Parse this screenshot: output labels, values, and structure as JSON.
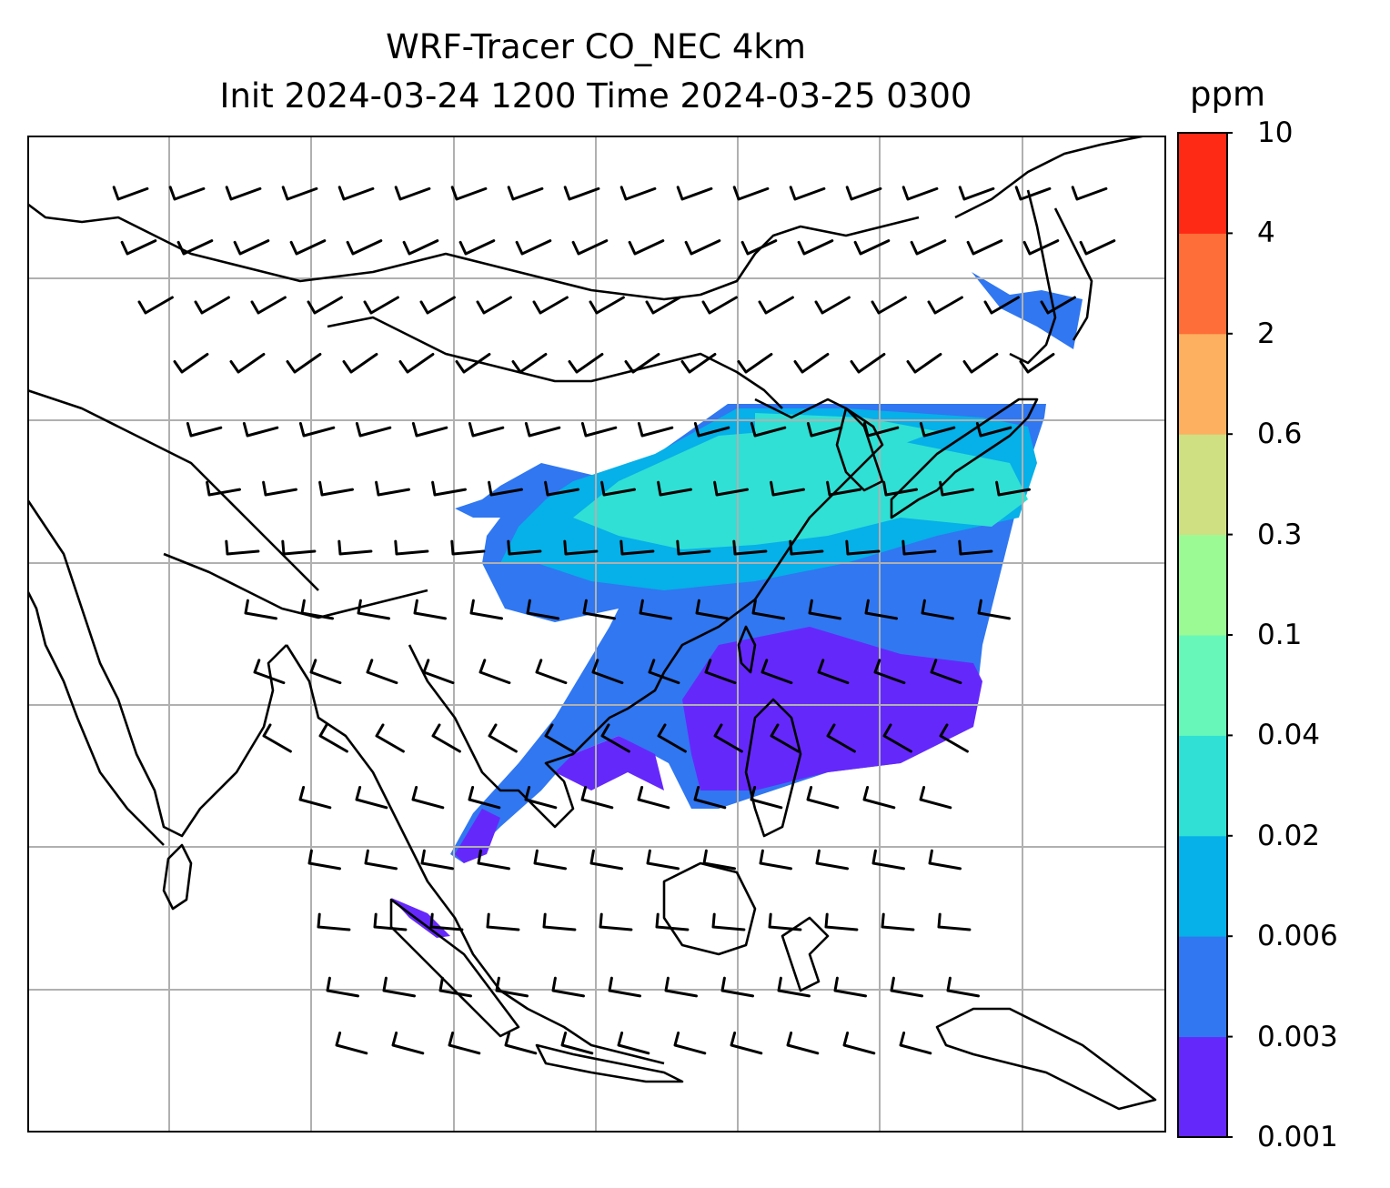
{
  "title": {
    "line1": "WRF-Tracer CO_NEC 4km",
    "line2": "Init 2024-03-24 1200 Time 2024-03-25 0300"
  },
  "colorbar": {
    "unit_label": "ppm",
    "levels": [
      "0.001",
      "0.003",
      "0.006",
      "0.02",
      "0.04",
      "0.1",
      "0.3",
      "0.6",
      "2",
      "4",
      "10"
    ],
    "colors": [
      "#6528fb",
      "#3077f1",
      "#06b0e8",
      "#30e0d4",
      "#67f8b9",
      "#9cfa95",
      "#cfe083",
      "#fdb05f",
      "#fe6e38",
      "#fe2a16"
    ]
  },
  "map": {
    "background": "#ffffff",
    "gridline_color": "#b0b0b0",
    "coastline_color": "#000000",
    "wind_barb_color": "#000000"
  }
}
